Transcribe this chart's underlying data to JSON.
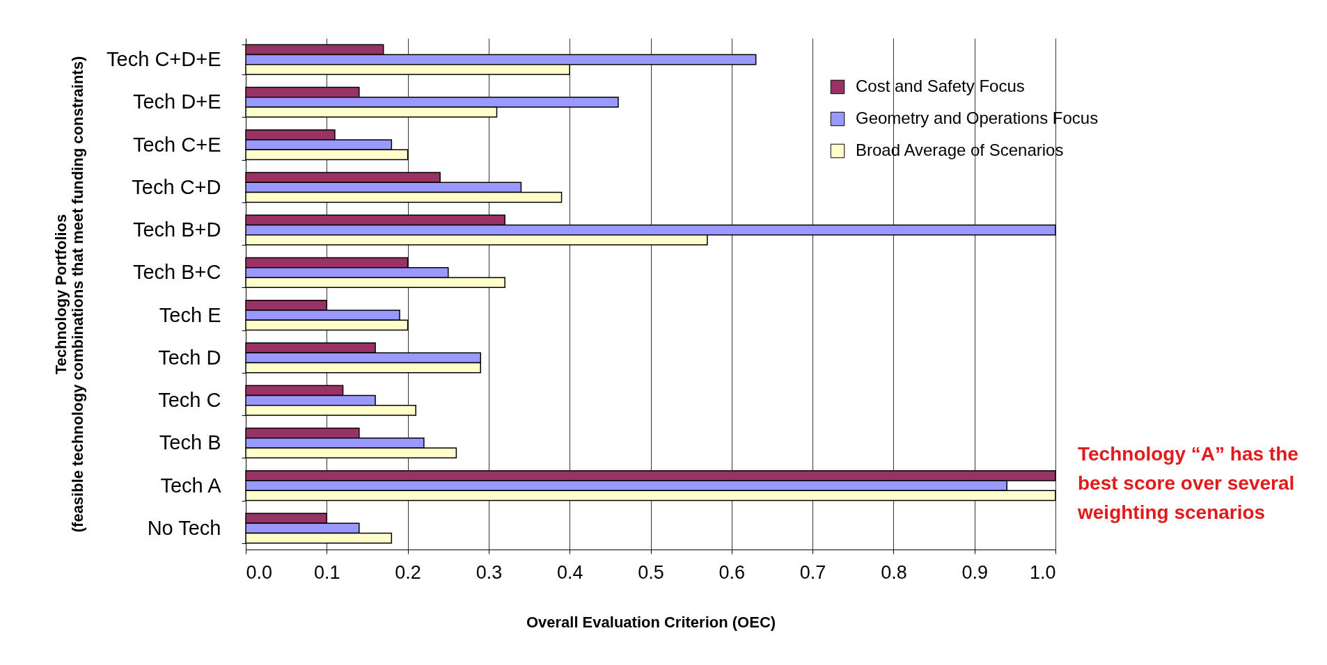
{
  "chart_data": {
    "type": "bar",
    "orientation": "horizontal",
    "xlabel": "Overall Evaluation Criterion (OEC)",
    "ylabel": "Technology Portfolios\n(feasible technology combinations that meet funding constraints)",
    "categories": [
      "Tech C+D+E",
      "Tech D+E",
      "Tech C+E",
      "Tech C+D",
      "Tech B+D",
      "Tech B+C",
      "Tech E",
      "Tech D",
      "Tech C",
      "Tech B",
      "Tech A",
      "No Tech"
    ],
    "series": [
      {
        "name": "Cost and Safety Focus",
        "color": "#993366",
        "values": [
          0.17,
          0.14,
          0.11,
          0.24,
          0.32,
          0.2,
          0.1,
          0.16,
          0.12,
          0.14,
          1.0,
          0.1
        ]
      },
      {
        "name": "Geometry and Operations Focus",
        "color": "#9999ff",
        "values": [
          0.63,
          0.46,
          0.18,
          0.34,
          1.0,
          0.25,
          0.19,
          0.29,
          0.16,
          0.22,
          0.94,
          0.14
        ]
      },
      {
        "name": "Broad Average of Scenarios",
        "color": "#ffffcc",
        "values": [
          0.4,
          0.31,
          0.2,
          0.39,
          0.57,
          0.32,
          0.2,
          0.29,
          0.21,
          0.26,
          1.0,
          0.18
        ]
      }
    ],
    "xlim": [
      0,
      1
    ],
    "xticks": [
      {
        "value": 0,
        "label": "0.0"
      },
      {
        "value": 0.1,
        "label": "0.1"
      },
      {
        "value": 0.2,
        "label": "0.2"
      },
      {
        "value": 0.3,
        "label": "0.3"
      },
      {
        "value": 0.4,
        "label": "0.4"
      },
      {
        "value": 0.5,
        "label": "0.5"
      },
      {
        "value": 0.6,
        "label": "0.6"
      },
      {
        "value": 0.7,
        "label": "0.7"
      },
      {
        "value": 0.8,
        "label": "0.8"
      },
      {
        "value": 0.9,
        "label": "0.9"
      },
      {
        "value": 1,
        "label": "1.0"
      }
    ],
    "grid": "x",
    "legend": "top right",
    "annotations": [
      "Technology “A” has the best score over several weighting scenarios"
    ]
  }
}
